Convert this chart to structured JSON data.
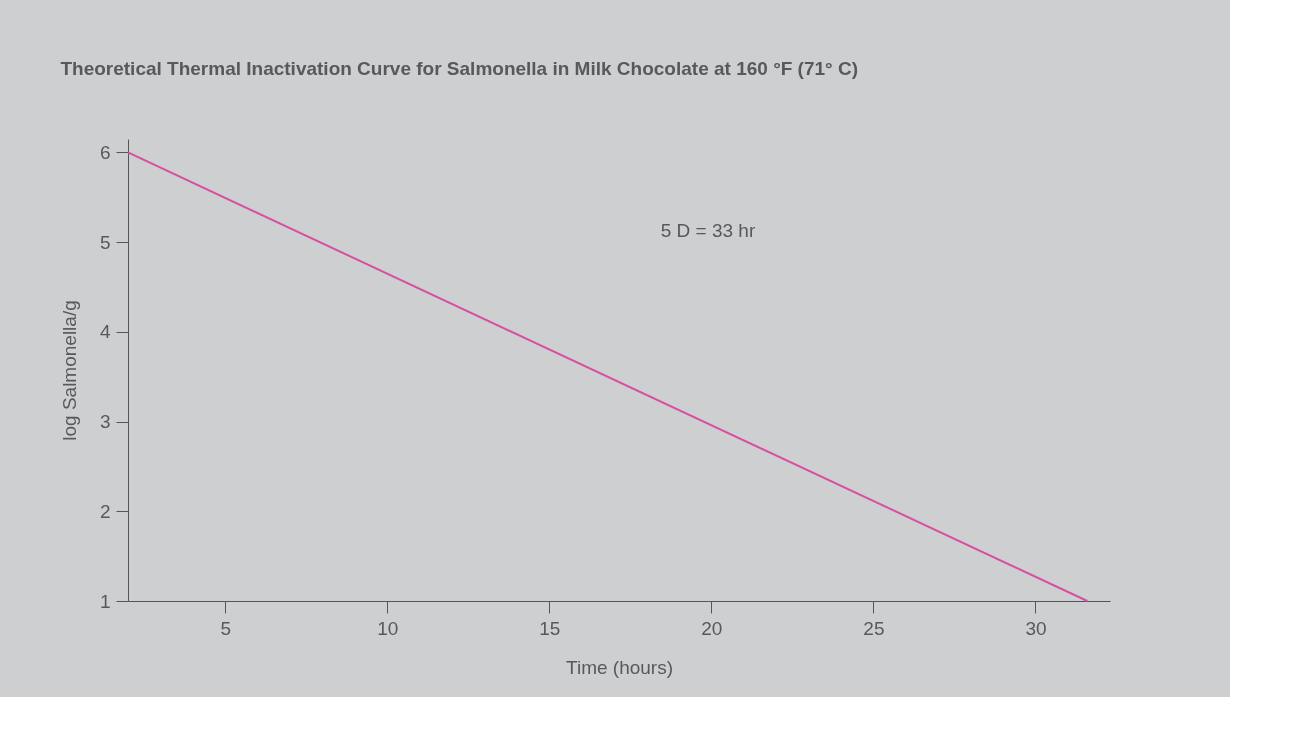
{
  "chart_data": {
    "type": "line",
    "title": "Theoretical Thermal Inactivation Curve for Salmonella in Milk Chocolate at 160 °F (71° C)",
    "xlabel": "Time (hours)",
    "ylabel": "log Salmonella/g",
    "x": [
      2,
      31.6
    ],
    "series": [
      {
        "color": "#d94f9f",
        "values": [
          6,
          1
        ]
      }
    ],
    "xlim": [
      2,
      32.3
    ],
    "xticks": [
      5,
      10,
      15,
      20,
      25,
      30
    ],
    "ylim": [
      1,
      6.15
    ],
    "yticks": [
      1,
      2,
      3,
      4,
      5,
      6
    ],
    "annotations": [
      "5 D = 33 hr"
    ],
    "grid": false,
    "marker": "none",
    "line_style": "solid",
    "legend": false
  }
}
